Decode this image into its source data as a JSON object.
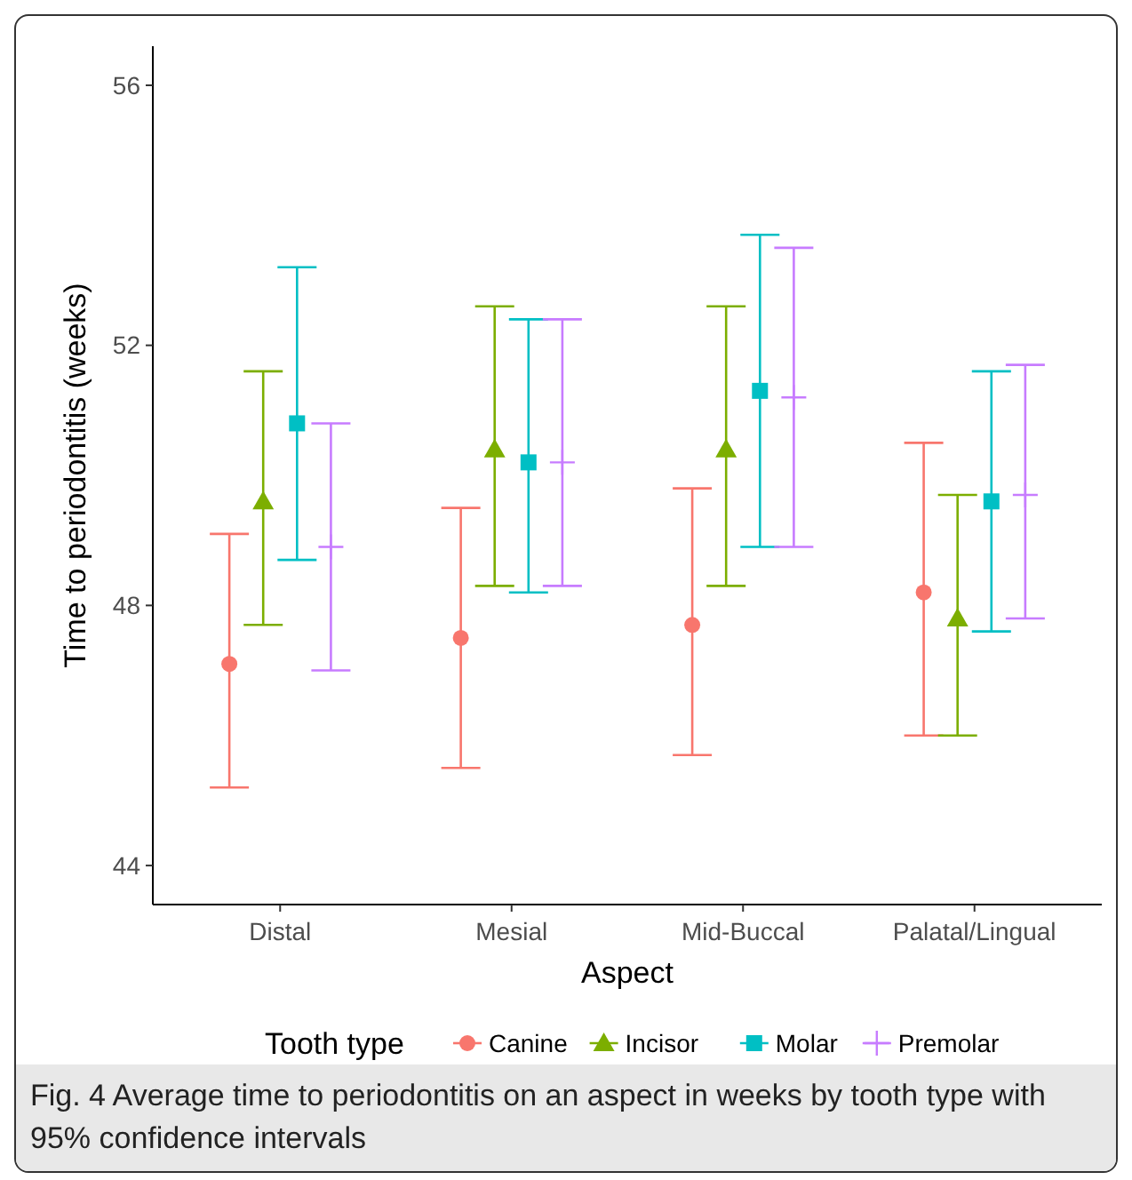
{
  "chart_data": {
    "type": "scatter",
    "xlabel": "Aspect",
    "ylabel": "Time to periodontitis (weeks)",
    "legend_title": "Tooth type",
    "legend": "bottom",
    "grid": false,
    "categories": [
      "Distal",
      "Mesial",
      "Mid-Buccal",
      "Palatal/Lingual"
    ],
    "ylim": [
      43.4,
      56.6
    ],
    "yticks": [
      44,
      48,
      52,
      56
    ],
    "series": [
      {
        "name": "Canine",
        "color": "#f8766d",
        "marker": "circle",
        "values": [
          47.1,
          47.5,
          47.7,
          48.2
        ],
        "errors": [
          [
            45.2,
            49.1
          ],
          [
            45.5,
            49.5
          ],
          [
            45.7,
            49.8
          ],
          [
            46.0,
            50.5
          ]
        ]
      },
      {
        "name": "Incisor",
        "color": "#7cae00",
        "marker": "triangle",
        "values": [
          49.6,
          50.4,
          50.4,
          47.8
        ],
        "errors": [
          [
            47.7,
            51.6
          ],
          [
            48.3,
            52.6
          ],
          [
            48.3,
            52.6
          ],
          [
            46.0,
            49.7
          ]
        ]
      },
      {
        "name": "Molar",
        "color": "#00bfc4",
        "marker": "square",
        "values": [
          50.8,
          50.2,
          51.3,
          49.6
        ],
        "errors": [
          [
            48.7,
            53.2
          ],
          [
            48.2,
            52.4
          ],
          [
            48.9,
            53.7
          ],
          [
            47.6,
            51.6
          ]
        ]
      },
      {
        "name": "Premolar",
        "color": "#c77cff",
        "marker": "cross",
        "values": [
          48.9,
          50.2,
          51.2,
          49.7
        ],
        "errors": [
          [
            47.0,
            50.8
          ],
          [
            48.3,
            52.4
          ],
          [
            48.9,
            53.5
          ],
          [
            47.8,
            51.7
          ]
        ]
      }
    ],
    "annotations": [
      "Fig. 4 Average time to periodontitis on an aspect in weeks by tooth type with 95% confidence intervals"
    ]
  }
}
